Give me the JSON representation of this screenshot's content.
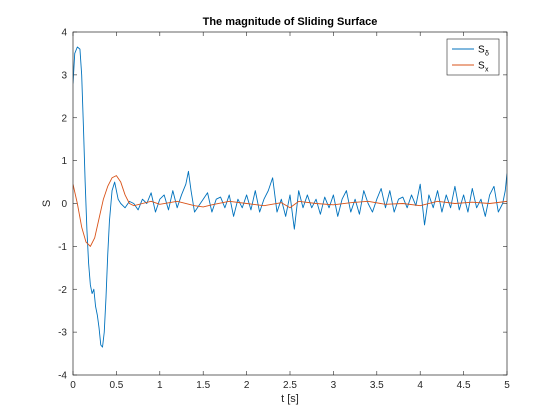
{
  "chart_data": {
    "type": "line",
    "title": "The magnitude of Sliding Surface",
    "xlabel": "t [s]",
    "ylabel": "S",
    "xlim": [
      0,
      5
    ],
    "ylim": [
      -4,
      4
    ],
    "xticks": [
      0,
      0.5,
      1,
      1.5,
      2,
      2.5,
      3,
      3.5,
      4,
      4.5,
      5
    ],
    "xtick_labels": [
      "0",
      "0.5",
      "1",
      "1.5",
      "2",
      "2.5",
      "3",
      "3.5",
      "4",
      "4.5",
      "5"
    ],
    "yticks": [
      -4,
      -3,
      -2,
      -1,
      0,
      1,
      2,
      3,
      4
    ],
    "ytick_labels": [
      "-4",
      "-3",
      "-2",
      "-1",
      "0",
      "1",
      "2",
      "3",
      "4"
    ],
    "grid": false,
    "legend_position": "top-right",
    "series": [
      {
        "name": "S",
        "subscript": "δ",
        "color": "#0072BD",
        "x": [
          0,
          0.02,
          0.05,
          0.08,
          0.1,
          0.12,
          0.14,
          0.16,
          0.18,
          0.2,
          0.22,
          0.24,
          0.26,
          0.28,
          0.3,
          0.32,
          0.34,
          0.36,
          0.38,
          0.4,
          0.42,
          0.45,
          0.48,
          0.5,
          0.52,
          0.55,
          0.6,
          0.65,
          0.7,
          0.75,
          0.8,
          0.85,
          0.9,
          0.95,
          1.0,
          1.05,
          1.1,
          1.15,
          1.2,
          1.25,
          1.3,
          1.33,
          1.36,
          1.4,
          1.45,
          1.5,
          1.55,
          1.6,
          1.65,
          1.7,
          1.75,
          1.8,
          1.85,
          1.9,
          1.95,
          2.0,
          2.05,
          2.1,
          2.15,
          2.2,
          2.25,
          2.3,
          2.35,
          2.4,
          2.45,
          2.5,
          2.55,
          2.6,
          2.65,
          2.7,
          2.75,
          2.8,
          2.85,
          2.9,
          2.95,
          3.0,
          3.05,
          3.1,
          3.15,
          3.2,
          3.25,
          3.3,
          3.35,
          3.4,
          3.45,
          3.5,
          3.55,
          3.6,
          3.65,
          3.7,
          3.75,
          3.8,
          3.85,
          3.9,
          3.95,
          4.0,
          4.05,
          4.1,
          4.15,
          4.2,
          4.25,
          4.3,
          4.35,
          4.4,
          4.45,
          4.5,
          4.55,
          4.6,
          4.65,
          4.7,
          4.75,
          4.8,
          4.85,
          4.9,
          4.95,
          4.98,
          5.0
        ],
        "values": [
          2.8,
          3.5,
          3.65,
          3.6,
          3.0,
          1.8,
          0.5,
          -0.6,
          -1.4,
          -1.9,
          -2.1,
          -2.0,
          -2.4,
          -2.6,
          -2.9,
          -3.3,
          -3.35,
          -3.0,
          -2.2,
          -1.2,
          -0.4,
          0.3,
          0.5,
          0.3,
          0.1,
          0.0,
          -0.1,
          0.05,
          0.0,
          -0.15,
          0.1,
          0.0,
          0.25,
          -0.2,
          0.1,
          0.2,
          -0.15,
          0.3,
          -0.1,
          0.2,
          0.45,
          0.75,
          0.3,
          -0.2,
          -0.05,
          0.1,
          0.25,
          -0.2,
          0.1,
          0.15,
          -0.1,
          0.2,
          -0.3,
          0.1,
          -0.1,
          0.2,
          -0.15,
          0.3,
          -0.2,
          0.1,
          0.3,
          0.6,
          -0.2,
          0.1,
          -0.3,
          0.2,
          -0.6,
          0.3,
          -0.1,
          0.2,
          -0.1,
          0.1,
          -0.25,
          0.15,
          -0.1,
          0.2,
          -0.3,
          0.1,
          0.3,
          -0.2,
          0.1,
          -0.25,
          0.3,
          0.0,
          -0.2,
          0.1,
          0.35,
          -0.1,
          0.3,
          -0.2,
          0.1,
          0.15,
          -0.1,
          0.2,
          -0.05,
          0.45,
          -0.5,
          0.2,
          -0.1,
          0.3,
          -0.2,
          0.2,
          -0.1,
          0.4,
          -0.15,
          0.2,
          -0.2,
          0.35,
          -0.1,
          0.1,
          -0.3,
          0.2,
          0.4,
          -0.2,
          0.0,
          0.3,
          0.7
        ]
      },
      {
        "name": "S",
        "subscript": "x",
        "color": "#D95319",
        "x": [
          0,
          0.05,
          0.1,
          0.15,
          0.2,
          0.25,
          0.3,
          0.35,
          0.4,
          0.45,
          0.5,
          0.55,
          0.6,
          0.65,
          0.7,
          0.8,
          0.9,
          1.0,
          1.2,
          1.4,
          1.5,
          1.6,
          1.8,
          2.0,
          2.2,
          2.4,
          2.5,
          2.6,
          2.8,
          3.0,
          3.2,
          3.4,
          3.6,
          3.8,
          4.0,
          4.2,
          4.4,
          4.6,
          4.8,
          5.0
        ],
        "values": [
          0.45,
          0.0,
          -0.55,
          -0.9,
          -1.0,
          -0.8,
          -0.35,
          0.1,
          0.4,
          0.6,
          0.65,
          0.5,
          0.2,
          0.0,
          -0.05,
          0.0,
          0.05,
          -0.02,
          0.05,
          -0.05,
          -0.08,
          -0.03,
          0.05,
          0.0,
          -0.05,
          0.02,
          -0.1,
          0.05,
          0.0,
          -0.03,
          0.02,
          0.05,
          -0.02,
          0.0,
          -0.05,
          0.05,
          0.0,
          0.03,
          0.0,
          0.05
        ]
      }
    ]
  }
}
